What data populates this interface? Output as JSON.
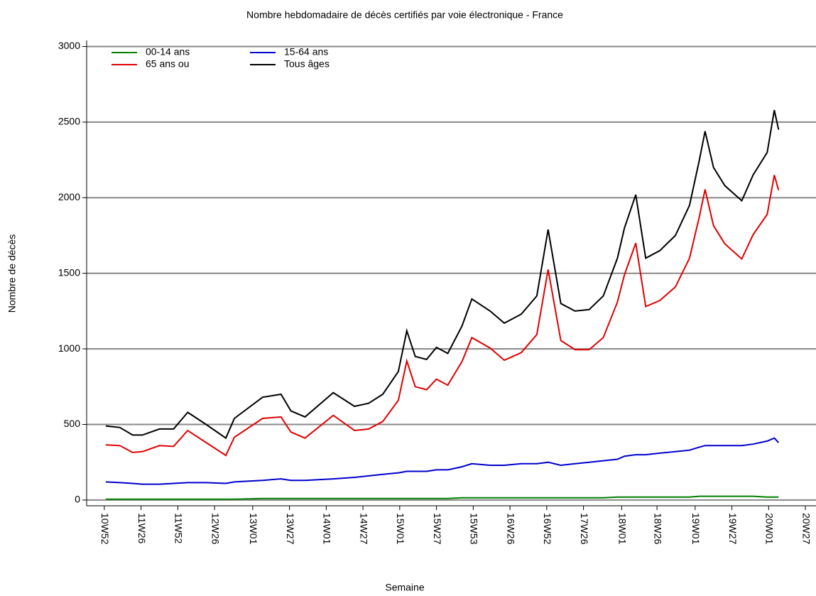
{
  "chart_data": {
    "type": "line",
    "title": "Nombre hebdomadaire de décès certifiés par voie électronique - France",
    "xlabel": "Semaine",
    "ylabel": "Nombre de décès",
    "x": [
      1,
      11,
      20,
      27,
      39,
      49,
      59,
      72,
      86,
      92,
      112,
      125,
      132,
      142,
      162,
      177,
      187,
      197,
      208,
      214,
      220,
      228,
      235,
      243,
      253,
      260,
      273,
      283,
      295,
      306,
      314,
      323,
      333,
      343,
      353,
      363,
      368,
      376,
      383,
      393,
      404,
      414,
      421,
      425,
      431,
      439,
      451,
      459,
      469,
      474,
      477
    ],
    "series": [
      {
        "name": "00-14 ans",
        "color": "#008000",
        "values": [
          5,
          5,
          5,
          5,
          5,
          5,
          5,
          5,
          5,
          5,
          10,
          10,
          10,
          10,
          10,
          10,
          10,
          10,
          10,
          10,
          10,
          10,
          10,
          10,
          15,
          15,
          15,
          15,
          15,
          15,
          15,
          15,
          15,
          15,
          15,
          20,
          20,
          20,
          20,
          20,
          20,
          20,
          25,
          25,
          25,
          25,
          25,
          25,
          20,
          20,
          20
        ]
      },
      {
        "name": "15-64 ans",
        "color": "#0000cc",
        "values": [
          120,
          115,
          110,
          105,
          105,
          110,
          115,
          115,
          110,
          120,
          130,
          140,
          130,
          130,
          140,
          150,
          160,
          170,
          180,
          190,
          190,
          190,
          200,
          200,
          220,
          240,
          230,
          230,
          240,
          240,
          250,
          230,
          240,
          250,
          260,
          270,
          290,
          300,
          300,
          310,
          320,
          330,
          350,
          360,
          360,
          360,
          360,
          370,
          390,
          410,
          380
        ]
      },
      {
        "name": "65 ans ou",
        "color": "#e00000",
        "values": [
          365,
          360,
          315,
          320,
          360,
          355,
          460,
          380,
          295,
          415,
          540,
          550,
          450,
          410,
          560,
          460,
          470,
          520,
          660,
          920,
          750,
          730,
          800,
          760,
          915,
          1075,
          1005,
          925,
          975,
          1095,
          1525,
          1055,
          995,
          995,
          1075,
          1310,
          1490,
          1700,
          1280,
          1320,
          1410,
          1600,
          1875,
          2055,
          1815,
          1695,
          1595,
          1755,
          1890,
          2150,
          2050
        ]
      },
      {
        "name": "Tous âges",
        "color": "#000000",
        "values": [
          490,
          480,
          430,
          430,
          470,
          470,
          580,
          500,
          410,
          540,
          680,
          700,
          590,
          550,
          710,
          620,
          640,
          700,
          850,
          1120,
          950,
          930,
          1010,
          970,
          1150,
          1330,
          1250,
          1170,
          1230,
          1350,
          1790,
          1300,
          1250,
          1260,
          1350,
          1600,
          1800,
          2020,
          1600,
          1650,
          1750,
          1950,
          2250,
          2440,
          2200,
          2080,
          1980,
          2150,
          2300,
          2580,
          2450
        ]
      }
    ],
    "xlim": [
      -12.5,
      503.5
    ],
    "xticks": [
      {
        "value": 0,
        "label": "10W52"
      },
      {
        "value": 26,
        "label": "11W26"
      },
      {
        "value": 52,
        "label": "11W52"
      },
      {
        "value": 78,
        "label": "12W26"
      },
      {
        "value": 105,
        "label": "13W01"
      },
      {
        "value": 131,
        "label": "13W27"
      },
      {
        "value": 157,
        "label": "14W01"
      },
      {
        "value": 183,
        "label": "14W27"
      },
      {
        "value": 209,
        "label": "15W01"
      },
      {
        "value": 235,
        "label": "15W27"
      },
      {
        "value": 261,
        "label": "15W53"
      },
      {
        "value": 287,
        "label": "16W26"
      },
      {
        "value": 313,
        "label": "16W52"
      },
      {
        "value": 339,
        "label": "17W26"
      },
      {
        "value": 366,
        "label": "18W01"
      },
      {
        "value": 391,
        "label": "18W26"
      },
      {
        "value": 418,
        "label": "19W01"
      },
      {
        "value": 444,
        "label": "19W27"
      },
      {
        "value": 470,
        "label": "20W01"
      },
      {
        "value": 496,
        "label": "20W27"
      }
    ],
    "ylim": [
      -38,
      3040
    ],
    "yticks": [
      0,
      500,
      1000,
      1500,
      2000,
      2500,
      3000
    ],
    "grid": true
  }
}
